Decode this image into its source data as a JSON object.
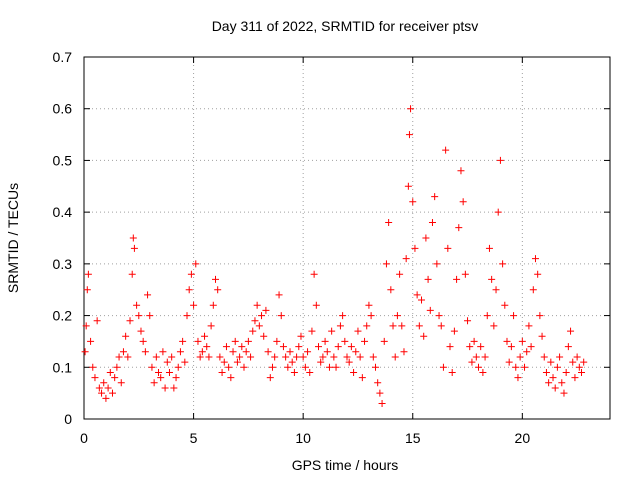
{
  "chart_data": {
    "type": "scatter",
    "title": "Day 311 of 2022, SRMTID for receiver ptsv",
    "xlabel": "GPS time / hours",
    "ylabel": "SRMTID / TECUs",
    "xlim": [
      0,
      24
    ],
    "ylim": [
      0,
      0.7
    ],
    "xticks": [
      0,
      5,
      10,
      15,
      20
    ],
    "yticks": [
      0,
      0.1,
      0.2,
      0.3,
      0.4,
      0.5,
      0.6,
      0.7
    ],
    "grid": true,
    "marker": "+",
    "color": "#ff0000",
    "series": [
      {
        "name": "SRMTID",
        "points": [
          [
            0.05,
            0.13
          ],
          [
            0.1,
            0.18
          ],
          [
            0.15,
            0.25
          ],
          [
            0.2,
            0.28
          ],
          [
            0.3,
            0.15
          ],
          [
            0.4,
            0.1
          ],
          [
            0.5,
            0.08
          ],
          [
            0.6,
            0.19
          ],
          [
            0.7,
            0.06
          ],
          [
            0.8,
            0.05
          ],
          [
            0.9,
            0.07
          ],
          [
            1.0,
            0.04
          ],
          [
            1.1,
            0.06
          ],
          [
            1.2,
            0.09
          ],
          [
            1.3,
            0.05
          ],
          [
            1.4,
            0.08
          ],
          [
            1.5,
            0.1
          ],
          [
            1.6,
            0.12
          ],
          [
            1.7,
            0.07
          ],
          [
            1.8,
            0.13
          ],
          [
            1.9,
            0.16
          ],
          [
            2.0,
            0.12
          ],
          [
            2.1,
            0.19
          ],
          [
            2.2,
            0.28
          ],
          [
            2.25,
            0.35
          ],
          [
            2.3,
            0.33
          ],
          [
            2.4,
            0.22
          ],
          [
            2.5,
            0.2
          ],
          [
            2.6,
            0.17
          ],
          [
            2.7,
            0.15
          ],
          [
            2.8,
            0.13
          ],
          [
            2.9,
            0.24
          ],
          [
            3.0,
            0.2
          ],
          [
            3.1,
            0.1
          ],
          [
            3.2,
            0.07
          ],
          [
            3.3,
            0.12
          ],
          [
            3.4,
            0.09
          ],
          [
            3.5,
            0.08
          ],
          [
            3.6,
            0.13
          ],
          [
            3.7,
            0.06
          ],
          [
            3.8,
            0.11
          ],
          [
            3.9,
            0.09
          ],
          [
            4.0,
            0.12
          ],
          [
            4.1,
            0.06
          ],
          [
            4.2,
            0.08
          ],
          [
            4.3,
            0.1
          ],
          [
            4.4,
            0.13
          ],
          [
            4.5,
            0.15
          ],
          [
            4.6,
            0.11
          ],
          [
            4.7,
            0.2
          ],
          [
            4.8,
            0.25
          ],
          [
            4.9,
            0.28
          ],
          [
            5.0,
            0.22
          ],
          [
            5.1,
            0.3
          ],
          [
            5.2,
            0.15
          ],
          [
            5.3,
            0.12
          ],
          [
            5.4,
            0.13
          ],
          [
            5.5,
            0.16
          ],
          [
            5.6,
            0.14
          ],
          [
            5.7,
            0.12
          ],
          [
            5.8,
            0.18
          ],
          [
            5.9,
            0.22
          ],
          [
            6.0,
            0.27
          ],
          [
            6.1,
            0.25
          ],
          [
            6.2,
            0.12
          ],
          [
            6.3,
            0.09
          ],
          [
            6.4,
            0.11
          ],
          [
            6.5,
            0.14
          ],
          [
            6.6,
            0.1
          ],
          [
            6.7,
            0.08
          ],
          [
            6.8,
            0.13
          ],
          [
            6.9,
            0.15
          ],
          [
            7.0,
            0.11
          ],
          [
            7.1,
            0.12
          ],
          [
            7.2,
            0.14
          ],
          [
            7.3,
            0.1
          ],
          [
            7.4,
            0.13
          ],
          [
            7.5,
            0.15
          ],
          [
            7.6,
            0.12
          ],
          [
            7.7,
            0.17
          ],
          [
            7.8,
            0.19
          ],
          [
            7.9,
            0.22
          ],
          [
            8.0,
            0.18
          ],
          [
            8.1,
            0.2
          ],
          [
            8.2,
            0.16
          ],
          [
            8.3,
            0.21
          ],
          [
            8.4,
            0.13
          ],
          [
            8.5,
            0.08
          ],
          [
            8.6,
            0.1
          ],
          [
            8.7,
            0.12
          ],
          [
            8.8,
            0.15
          ],
          [
            8.9,
            0.24
          ],
          [
            9.0,
            0.2
          ],
          [
            9.1,
            0.14
          ],
          [
            9.2,
            0.12
          ],
          [
            9.3,
            0.1
          ],
          [
            9.4,
            0.13
          ],
          [
            9.5,
            0.11
          ],
          [
            9.6,
            0.09
          ],
          [
            9.7,
            0.12
          ],
          [
            9.8,
            0.14
          ],
          [
            9.9,
            0.16
          ],
          [
            10.0,
            0.12
          ],
          [
            10.1,
            0.1
          ],
          [
            10.2,
            0.13
          ],
          [
            10.3,
            0.09
          ],
          [
            10.4,
            0.17
          ],
          [
            10.5,
            0.28
          ],
          [
            10.6,
            0.22
          ],
          [
            10.7,
            0.14
          ],
          [
            10.8,
            0.11
          ],
          [
            10.9,
            0.12
          ],
          [
            11.0,
            0.15
          ],
          [
            11.1,
            0.13
          ],
          [
            11.2,
            0.1
          ],
          [
            11.3,
            0.17
          ],
          [
            11.4,
            0.12
          ],
          [
            11.5,
            0.1
          ],
          [
            11.6,
            0.14
          ],
          [
            11.7,
            0.18
          ],
          [
            11.8,
            0.2
          ],
          [
            11.9,
            0.15
          ],
          [
            12.0,
            0.12
          ],
          [
            12.1,
            0.11
          ],
          [
            12.2,
            0.14
          ],
          [
            12.3,
            0.09
          ],
          [
            12.4,
            0.13
          ],
          [
            12.5,
            0.17
          ],
          [
            12.6,
            0.12
          ],
          [
            12.7,
            0.08
          ],
          [
            12.8,
            0.15
          ],
          [
            12.9,
            0.18
          ],
          [
            13.0,
            0.22
          ],
          [
            13.1,
            0.2
          ],
          [
            13.2,
            0.12
          ],
          [
            13.3,
            0.1
          ],
          [
            13.4,
            0.07
          ],
          [
            13.5,
            0.05
          ],
          [
            13.6,
            0.03
          ],
          [
            13.7,
            0.15
          ],
          [
            13.8,
            0.3
          ],
          [
            13.9,
            0.38
          ],
          [
            14.0,
            0.25
          ],
          [
            14.1,
            0.18
          ],
          [
            14.2,
            0.12
          ],
          [
            14.3,
            0.2
          ],
          [
            14.4,
            0.28
          ],
          [
            14.5,
            0.18
          ],
          [
            14.6,
            0.13
          ],
          [
            14.7,
            0.31
          ],
          [
            14.8,
            0.45
          ],
          [
            14.85,
            0.55
          ],
          [
            14.9,
            0.6
          ],
          [
            15.0,
            0.42
          ],
          [
            15.1,
            0.33
          ],
          [
            15.2,
            0.24
          ],
          [
            15.3,
            0.18
          ],
          [
            15.4,
            0.23
          ],
          [
            15.5,
            0.16
          ],
          [
            15.6,
            0.35
          ],
          [
            15.7,
            0.27
          ],
          [
            15.8,
            0.21
          ],
          [
            15.9,
            0.38
          ],
          [
            16.0,
            0.43
          ],
          [
            16.1,
            0.3
          ],
          [
            16.2,
            0.2
          ],
          [
            16.3,
            0.18
          ],
          [
            16.4,
            0.1
          ],
          [
            16.5,
            0.52
          ],
          [
            16.6,
            0.33
          ],
          [
            16.7,
            0.14
          ],
          [
            16.8,
            0.09
          ],
          [
            16.9,
            0.17
          ],
          [
            17.0,
            0.27
          ],
          [
            17.1,
            0.37
          ],
          [
            17.2,
            0.48
          ],
          [
            17.3,
            0.42
          ],
          [
            17.4,
            0.28
          ],
          [
            17.5,
            0.19
          ],
          [
            17.6,
            0.14
          ],
          [
            17.7,
            0.11
          ],
          [
            17.8,
            0.15
          ],
          [
            17.9,
            0.12
          ],
          [
            18.0,
            0.1
          ],
          [
            18.1,
            0.14
          ],
          [
            18.2,
            0.09
          ],
          [
            18.3,
            0.12
          ],
          [
            18.4,
            0.2
          ],
          [
            18.5,
            0.33
          ],
          [
            18.6,
            0.27
          ],
          [
            18.7,
            0.18
          ],
          [
            18.8,
            0.25
          ],
          [
            18.9,
            0.4
          ],
          [
            19.0,
            0.5
          ],
          [
            19.1,
            0.3
          ],
          [
            19.2,
            0.22
          ],
          [
            19.3,
            0.15
          ],
          [
            19.4,
            0.11
          ],
          [
            19.5,
            0.14
          ],
          [
            19.6,
            0.2
          ],
          [
            19.7,
            0.1
          ],
          [
            19.8,
            0.08
          ],
          [
            19.9,
            0.12
          ],
          [
            20.0,
            0.15
          ],
          [
            20.1,
            0.1
          ],
          [
            20.2,
            0.13
          ],
          [
            20.3,
            0.18
          ],
          [
            20.4,
            0.14
          ],
          [
            20.5,
            0.25
          ],
          [
            20.6,
            0.31
          ],
          [
            20.7,
            0.28
          ],
          [
            20.8,
            0.2
          ],
          [
            20.9,
            0.16
          ],
          [
            21.0,
            0.12
          ],
          [
            21.1,
            0.09
          ],
          [
            21.2,
            0.07
          ],
          [
            21.3,
            0.11
          ],
          [
            21.4,
            0.08
          ],
          [
            21.5,
            0.06
          ],
          [
            21.6,
            0.1
          ],
          [
            21.7,
            0.12
          ],
          [
            21.8,
            0.07
          ],
          [
            21.9,
            0.05
          ],
          [
            22.0,
            0.09
          ],
          [
            22.1,
            0.14
          ],
          [
            22.2,
            0.17
          ],
          [
            22.3,
            0.11
          ],
          [
            22.4,
            0.08
          ],
          [
            22.5,
            0.12
          ],
          [
            22.6,
            0.1
          ],
          [
            22.7,
            0.09
          ],
          [
            22.8,
            0.11
          ]
        ]
      }
    ]
  }
}
